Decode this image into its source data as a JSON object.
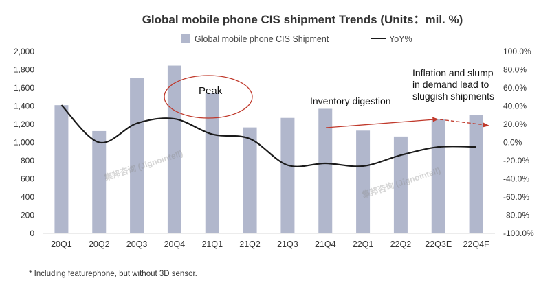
{
  "chart_data": {
    "type": "bar",
    "title": "Global mobile phone CIS shipment Trends (Units：mil. %)",
    "categories": [
      "20Q1",
      "20Q2",
      "20Q3",
      "20Q4",
      "21Q1",
      "21Q2",
      "21Q3",
      "21Q4",
      "22Q1",
      "22Q2",
      "22Q3E",
      "22Q4F"
    ],
    "series": [
      {
        "name": "Global mobile phone CIS Shipment",
        "kind": "bar",
        "axis": "left",
        "values": [
          1410,
          1125,
          1710,
          1845,
          1540,
          1165,
          1270,
          1370,
          1130,
          1065,
          1255,
          1300
        ]
      },
      {
        "name": "YoY%",
        "kind": "line",
        "axis": "right",
        "values": [
          41,
          0,
          21,
          26,
          9,
          4,
          -25,
          -23,
          -26,
          -14,
          -5,
          -5
        ]
      }
    ],
    "y_left": {
      "min": 0,
      "max": 2000,
      "step": 200,
      "tick_labels": [
        "0",
        "200",
        "400",
        "600",
        "800",
        "1,000",
        "1,200",
        "1,400",
        "1,600",
        "1,800",
        "2,000"
      ]
    },
    "y_right": {
      "min": -100,
      "max": 100,
      "step": 20,
      "tick_labels": [
        "-100.0%",
        "-80.0%",
        "-60.0%",
        "-40.0%",
        "-20.0%",
        "0.0%",
        "20.0%",
        "40.0%",
        "60.0%",
        "80.0%",
        "100.0%"
      ]
    },
    "legend_position": "top-center",
    "grid": false,
    "colors": {
      "bar": "#b1b7cc",
      "line": "#1a1a1a",
      "annotation": "#c0392b",
      "text": "#333333"
    },
    "annotations": {
      "peak": "Peak",
      "inventory": "Inventory digestion",
      "inflation_lines": [
        "Inflation and slump",
        "in demand lead to",
        "sluggish shipments"
      ]
    },
    "watermark": "集邦咨询 (Jignointell)",
    "footnote": "* Including featurephone, but without 3D sensor."
  }
}
